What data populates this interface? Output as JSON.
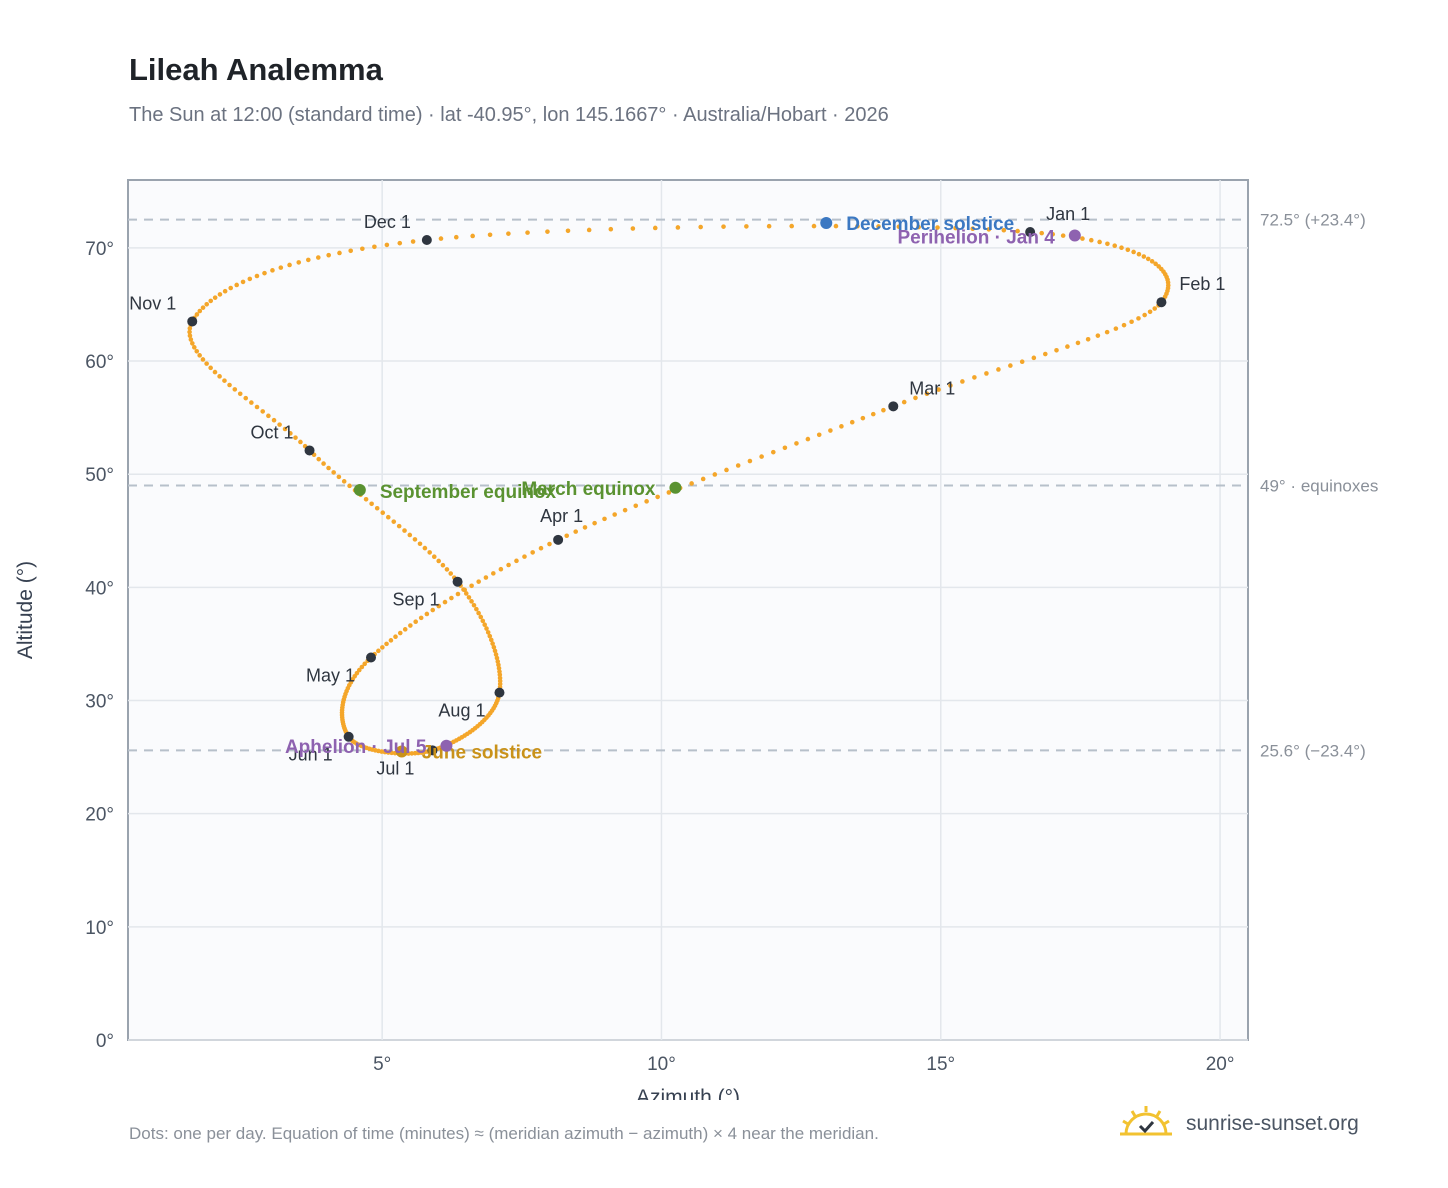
{
  "header": {
    "title": "Lileah Analemma",
    "subtitle": "The Sun at 12:00 (standard time) · lat -40.95°, lon 145.1667° · Australia/Hobart · 2026"
  },
  "chart_data": {
    "type": "scatter",
    "xlabel": "Azimuth (°)",
    "ylabel": "Altitude (°)",
    "xlim": [
      0.45,
      20.5
    ],
    "ylim": [
      0,
      76
    ],
    "x_ticks": [
      {
        "value": 5,
        "label": "5°"
      },
      {
        "value": 10,
        "label": "10°"
      },
      {
        "value": 15,
        "label": "15°"
      },
      {
        "value": 20,
        "label": "20°"
      }
    ],
    "y_ticks": [
      {
        "value": 0,
        "label": "0°"
      },
      {
        "value": 10,
        "label": "10°"
      },
      {
        "value": 20,
        "label": "20°"
      },
      {
        "value": 30,
        "label": "30°"
      },
      {
        "value": 40,
        "label": "40°"
      },
      {
        "value": 50,
        "label": "50°"
      },
      {
        "value": 60,
        "label": "60°"
      },
      {
        "value": 70,
        "label": "70°"
      }
    ],
    "grid": true,
    "reference_lines": [
      {
        "y": 72.5,
        "label": "72.5° (+23.4°)"
      },
      {
        "y": 49,
        "label": "49° · equinoxes"
      },
      {
        "y": 25.6,
        "label": "25.6° (−23.4°)"
      }
    ],
    "month_markers": [
      {
        "label": "Jan 1",
        "x": 16.6,
        "y": 71.4
      },
      {
        "label": "Feb 1",
        "x": 18.95,
        "y": 65.2
      },
      {
        "label": "Mar 1",
        "x": 14.15,
        "y": 56.0
      },
      {
        "label": "Apr 1",
        "x": 8.15,
        "y": 44.2
      },
      {
        "label": "May 1",
        "x": 4.8,
        "y": 33.8
      },
      {
        "label": "Jun 1",
        "x": 4.4,
        "y": 26.8
      },
      {
        "label": "Jul 1",
        "x": 5.9,
        "y": 25.6
      },
      {
        "label": "Aug 1",
        "x": 7.1,
        "y": 30.7
      },
      {
        "label": "Sep 1",
        "x": 6.35,
        "y": 40.5
      },
      {
        "label": "Oct 1",
        "x": 3.7,
        "y": 52.1
      },
      {
        "label": "Nov 1",
        "x": 1.6,
        "y": 63.5
      },
      {
        "label": "Dec 1",
        "x": 5.8,
        "y": 70.7
      }
    ],
    "events": [
      {
        "label": "March equinox",
        "x": 10.25,
        "y": 48.8,
        "color": "#5a9231"
      },
      {
        "label": "June solstice",
        "x": 5.35,
        "y": 25.5,
        "color": "#c9921a"
      },
      {
        "label": "September equinox",
        "x": 4.6,
        "y": 48.6,
        "color": "#5a9231"
      },
      {
        "label": "December solstice",
        "x": 12.95,
        "y": 72.2,
        "color": "#3b78c2"
      },
      {
        "label": "Perihelion · Jan 4",
        "x": 17.4,
        "y": 71.1,
        "color": "#8e62b0"
      },
      {
        "label": "Aphelion · Jul 5",
        "x": 6.15,
        "y": 26.0,
        "color": "#8e62b0"
      }
    ],
    "path_color": "#f4a62a",
    "marker_color": "#2f3640"
  },
  "footer": {
    "note": "Dots: one per day. Equation of time (minutes) ≈ (meridian azimuth − azimuth) × 4 near the meridian.",
    "brand": "sunrise-sunset.org"
  }
}
